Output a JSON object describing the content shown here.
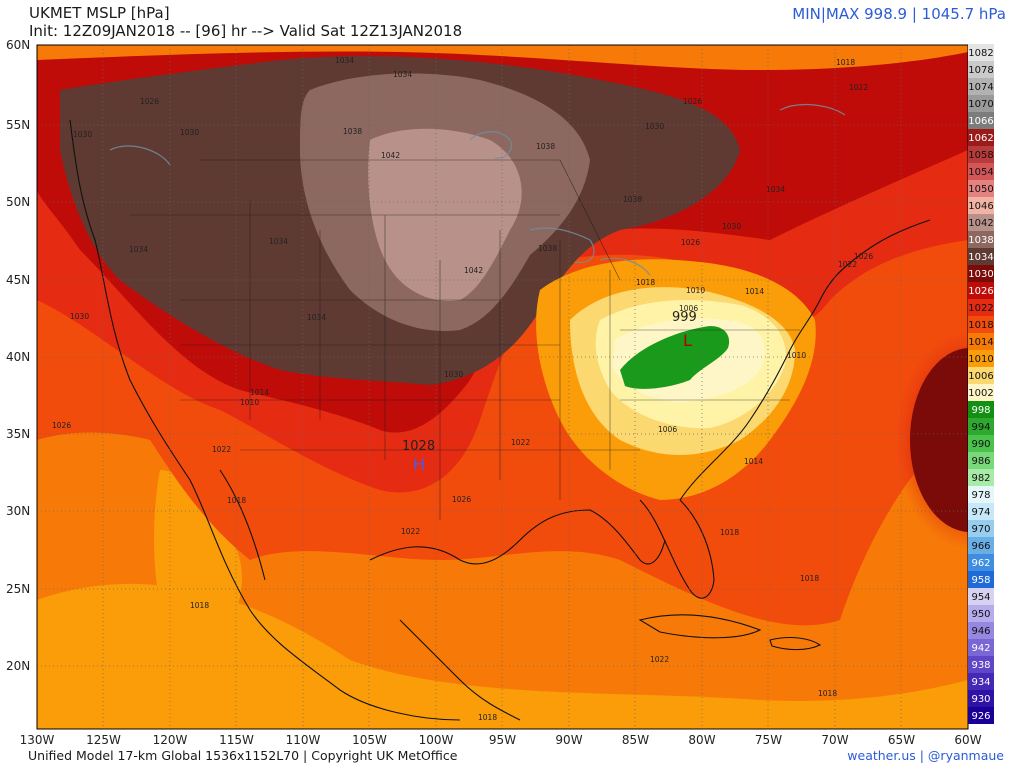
{
  "header": {
    "title": "UKMET MSLP [hPa]",
    "init": "Init: 12Z09JAN2018 -- [96] hr --> Valid Sat 12Z13JAN2018",
    "minmax": "MIN|MAX 998.9 | 1045.7 hPa"
  },
  "footer": {
    "model": "Unified Model 17-km Global 1536x1152L70 | Copyright UK MetOffice",
    "credit": "weather.us | @ryanmaue"
  },
  "axes": {
    "lat_labels": [
      "60N",
      "55N",
      "50N",
      "45N",
      "40N",
      "35N",
      "30N",
      "25N",
      "20N"
    ],
    "lon_labels": [
      "130W",
      "125W",
      "120W",
      "115W",
      "110W",
      "105W",
      "100W",
      "95W",
      "90W",
      "85W",
      "80W",
      "75W",
      "70W",
      "65W",
      "60W"
    ],
    "lat_range": [
      16,
      60
    ],
    "lon_range": [
      -130,
      -60
    ]
  },
  "pressure_centers": {
    "high_value": "1028",
    "high_symbol": "H",
    "low_value": "999",
    "low_symbol": "L"
  },
  "contour_labels": [
    "1034",
    "1034",
    "1026",
    "1030",
    "1030",
    "1042",
    "1038",
    "1038",
    "1042",
    "1034",
    "1030",
    "1026",
    "1022",
    "1018",
    "1034",
    "1038",
    "1034",
    "1030",
    "1026",
    "1022",
    "1018",
    "1030",
    "1026",
    "1022",
    "1018",
    "1010",
    "1014",
    "1006",
    "1010",
    "1014",
    "1018",
    "1022",
    "1026",
    "1030",
    "1034",
    "1038",
    "1026",
    "1022",
    "1018",
    "1014",
    "1010",
    "1006",
    "1018",
    "1022",
    "1018",
    "1018"
  ],
  "colorbar": {
    "levels": [
      "1082",
      "1078",
      "1074",
      "1070",
      "1066",
      "1062",
      "1058",
      "1054",
      "1050",
      "1046",
      "1042",
      "1038",
      "1034",
      "1030",
      "1026",
      "1022",
      "1018",
      "1014",
      "1010",
      "1006",
      "1002",
      "998",
      "994",
      "990",
      "986",
      "982",
      "978",
      "974",
      "970",
      "966",
      "962",
      "958",
      "954",
      "950",
      "946",
      "942",
      "938",
      "934",
      "930",
      "926"
    ],
    "colors": [
      "#e4e4e4",
      "#cacaca",
      "#b2b2b2",
      "#9a9a9a",
      "#7c7c7c",
      "#9b1a1a",
      "#b83a3a",
      "#d25656",
      "#e48282",
      "#f0b3a4",
      "#b8928a",
      "#8c6860",
      "#5e3a33",
      "#7a0b08",
      "#c00c08",
      "#e52b12",
      "#f24c0c",
      "#f77a08",
      "#fa9d08",
      "#fbd870",
      "#fff6c8",
      "#129012",
      "#2ea82e",
      "#4bc24b",
      "#79d879",
      "#a8eaa8",
      "#e6f7fa",
      "#c6e8f8",
      "#98cdf0",
      "#6aaee6",
      "#3e8de0",
      "#1f6ad6",
      "#d8d2f2",
      "#b6acec",
      "#9688e0",
      "#7a66d4",
      "#5f46c6",
      "#4428b6",
      "#2e12a6",
      "#1a0096"
    ]
  }
}
